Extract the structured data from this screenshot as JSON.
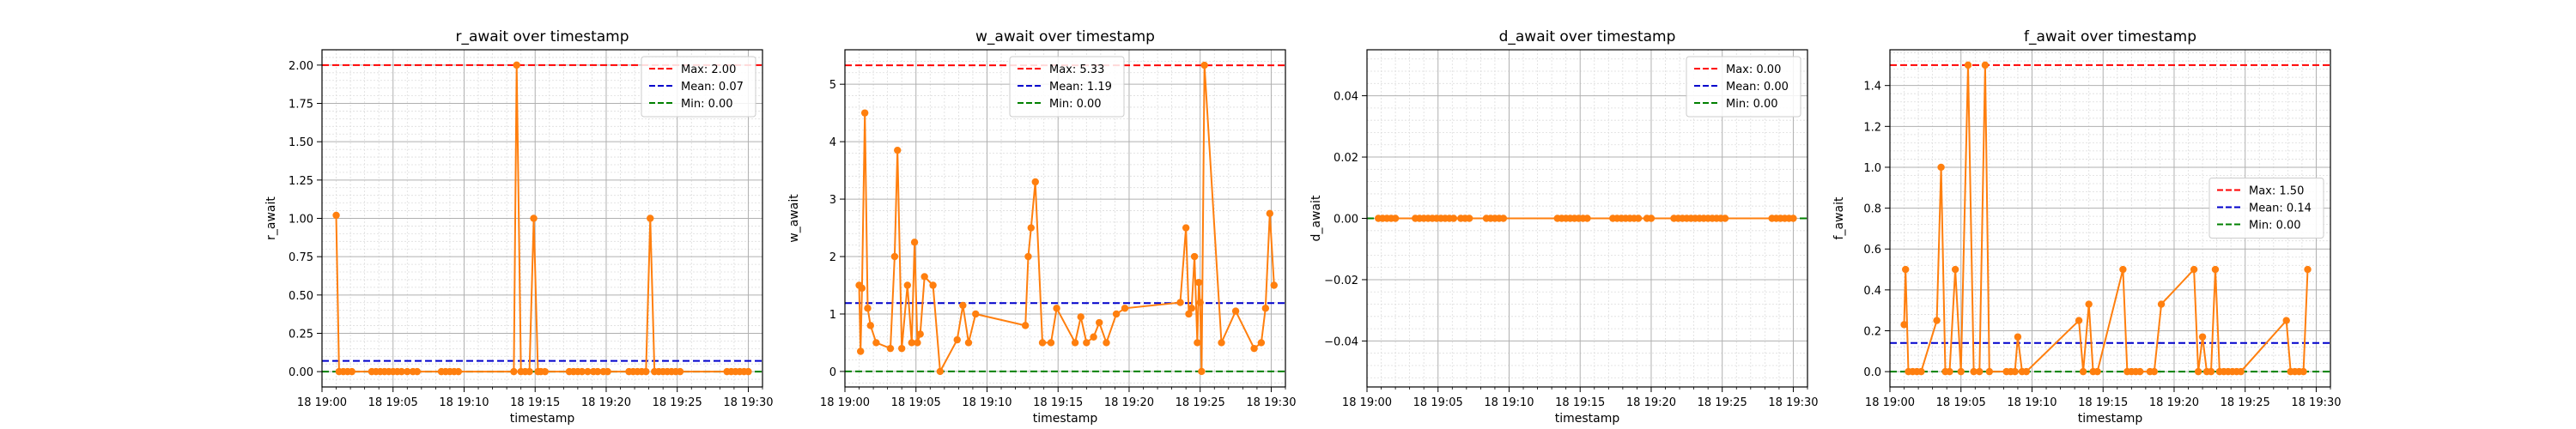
{
  "colors": {
    "series": "#ff7f0e",
    "max": "#ff0000",
    "mean": "#0000cc",
    "min": "#008000",
    "grid_major": "#b0b0b0",
    "grid_minor": "#dddddd"
  },
  "chart_data": [
    {
      "type": "line",
      "title": "r_await over timestamp",
      "xlabel": "timestamp",
      "ylabel": "r_await",
      "xlim": [
        0.0,
        31.0
      ],
      "ylim": [
        -0.1,
        2.1
      ],
      "yticks": [
        0.0,
        0.25,
        0.5,
        0.75,
        1.0,
        1.25,
        1.5,
        1.75,
        2.0
      ],
      "ytick_labels": [
        "0.00",
        "0.25",
        "0.50",
        "0.75",
        "1.00",
        "1.25",
        "1.50",
        "1.75",
        "2.00"
      ],
      "xticks": [
        0,
        5,
        10,
        15,
        20,
        25,
        30
      ],
      "xtick_labels": [
        "18 19:00",
        "18 19:05",
        "18 19:10",
        "18 19:15",
        "18 19:20",
        "18 19:25",
        "18 19:30"
      ],
      "x_unit": "minutes after 18 19:00",
      "x": [
        1.0,
        1.2,
        1.5,
        1.8,
        2.1,
        3.5,
        3.8,
        4.1,
        4.4,
        4.7,
        5.0,
        5.3,
        5.6,
        6.0,
        6.4,
        6.7,
        8.4,
        8.7,
        9.0,
        9.3,
        9.6,
        13.5,
        13.7,
        14.0,
        14.3,
        14.6,
        14.9,
        15.2,
        15.4,
        15.7,
        17.4,
        17.7,
        18.0,
        18.3,
        18.7,
        19.1,
        19.4,
        19.8,
        20.1,
        21.6,
        21.9,
        22.2,
        22.5,
        22.8,
        23.1,
        23.4,
        23.7,
        24.0,
        24.3,
        24.6,
        24.9,
        25.2,
        28.5,
        28.8,
        29.1,
        29.4,
        29.7,
        30.0
      ],
      "series": [
        {
          "values": [
            1.02,
            0.0,
            0.0,
            0.0,
            0.0,
            0.0,
            0.0,
            0.0,
            0.0,
            0.0,
            0.0,
            0.0,
            0.0,
            0.0,
            0.0,
            0.0,
            0.0,
            0.0,
            0.0,
            0.0,
            0.0,
            0.0,
            2.0,
            0.0,
            0.0,
            0.0,
            1.0,
            0.0,
            0.0,
            0.0,
            0.0,
            0.0,
            0.0,
            0.0,
            0.0,
            0.0,
            0.0,
            0.0,
            0.0,
            0.0,
            0.0,
            0.0,
            0.0,
            0.0,
            1.0,
            0.0,
            0.0,
            0.0,
            0.0,
            0.0,
            0.0,
            0.0,
            0.0,
            0.0,
            0.0,
            0.0,
            0.0,
            0.0
          ]
        }
      ],
      "reference_lines": [
        {
          "label": "Max: 2.00",
          "value": 2.0,
          "style": "max"
        },
        {
          "label": "Mean: 0.07",
          "value": 0.07,
          "style": "mean"
        },
        {
          "label": "Min: 0.00",
          "value": 0.0,
          "style": "min"
        }
      ],
      "legend_position": "top-right",
      "grid": true
    },
    {
      "type": "line",
      "title": "w_await over timestamp",
      "xlabel": "timestamp",
      "ylabel": "w_await",
      "xlim": [
        0.0,
        31.0
      ],
      "ylim": [
        -0.27,
        5.6
      ],
      "yticks": [
        0,
        1,
        2,
        3,
        4,
        5
      ],
      "ytick_labels": [
        "0",
        "1",
        "2",
        "3",
        "4",
        "5"
      ],
      "xticks": [
        0,
        5,
        10,
        15,
        20,
        25,
        30
      ],
      "xtick_labels": [
        "18 19:00",
        "18 19:05",
        "18 19:10",
        "18 19:15",
        "18 19:20",
        "18 19:25",
        "18 19:30"
      ],
      "x_unit": "minutes after 18 19:00",
      "x": [
        1.0,
        1.1,
        1.2,
        1.4,
        1.6,
        1.8,
        2.2,
        3.2,
        3.5,
        3.7,
        4.0,
        4.4,
        4.7,
        4.9,
        5.1,
        5.3,
        5.6,
        6.2,
        6.7,
        7.9,
        8.3,
        8.7,
        9.2,
        12.7,
        12.9,
        13.1,
        13.4,
        13.9,
        14.5,
        14.9,
        16.2,
        16.6,
        17.0,
        17.5,
        17.9,
        18.4,
        19.1,
        19.7,
        23.6,
        24.0,
        24.2,
        24.4,
        24.6,
        24.8,
        24.9,
        25.0,
        25.1,
        25.3,
        26.5,
        27.5,
        28.8,
        29.3,
        29.6,
        29.9,
        30.2
      ],
      "series": [
        {
          "values": [
            1.5,
            0.35,
            1.45,
            4.5,
            1.1,
            0.8,
            0.5,
            0.4,
            2.0,
            3.85,
            0.4,
            1.5,
            0.5,
            2.25,
            0.5,
            0.65,
            1.65,
            1.5,
            0.0,
            0.55,
            1.15,
            0.5,
            1.0,
            0.8,
            2.0,
            2.5,
            3.3,
            0.5,
            0.5,
            1.1,
            0.5,
            0.95,
            0.5,
            0.6,
            0.85,
            0.5,
            1.0,
            1.1,
            1.2,
            2.5,
            1.0,
            1.1,
            2.0,
            0.5,
            1.55,
            1.2,
            0.0,
            5.33,
            0.5,
            1.05,
            0.4,
            0.5,
            1.1,
            2.75,
            1.5
          ]
        }
      ],
      "reference_lines": [
        {
          "label": "Max: 5.33",
          "value": 5.33,
          "style": "max"
        },
        {
          "label": "Mean: 1.19",
          "value": 1.19,
          "style": "mean"
        },
        {
          "label": "Min: 0.00",
          "value": 0.0,
          "style": "min"
        }
      ],
      "legend_position": "top-center",
      "grid": true
    },
    {
      "type": "line",
      "title": "d_await over timestamp",
      "xlabel": "timestamp",
      "ylabel": "d_await",
      "xlim": [
        0.0,
        31.0
      ],
      "ylim": [
        -0.055,
        0.055
      ],
      "yticks": [
        -0.04,
        -0.02,
        0.0,
        0.02,
        0.04
      ],
      "ytick_labels": [
        "−0.04",
        "−0.02",
        "0.00",
        "0.02",
        "0.04"
      ],
      "xticks": [
        0,
        5,
        10,
        15,
        20,
        25,
        30
      ],
      "xtick_labels": [
        "18 19:00",
        "18 19:05",
        "18 19:10",
        "18 19:15",
        "18 19:20",
        "18 19:25",
        "18 19:30"
      ],
      "x_unit": "minutes after 18 19:00",
      "x": [
        0.8,
        1.1,
        1.4,
        1.7,
        2.0,
        3.4,
        3.7,
        4.0,
        4.3,
        4.6,
        4.9,
        5.2,
        5.5,
        5.8,
        6.1,
        6.6,
        6.9,
        7.2,
        8.4,
        8.7,
        9.0,
        9.3,
        9.6,
        13.4,
        13.7,
        14.0,
        14.3,
        14.6,
        14.9,
        15.2,
        15.5,
        17.3,
        17.6,
        17.9,
        18.2,
        18.5,
        18.8,
        19.1,
        19.7,
        20.0,
        21.6,
        21.9,
        22.2,
        22.5,
        22.8,
        23.1,
        23.4,
        23.7,
        24.0,
        24.3,
        24.6,
        24.9,
        25.2,
        28.5,
        28.8,
        29.1,
        29.4,
        29.7,
        30.0
      ],
      "series": [
        {
          "values": [
            0.0,
            0.0,
            0.0,
            0.0,
            0.0,
            0.0,
            0.0,
            0.0,
            0.0,
            0.0,
            0.0,
            0.0,
            0.0,
            0.0,
            0.0,
            0.0,
            0.0,
            0.0,
            0.0,
            0.0,
            0.0,
            0.0,
            0.0,
            0.0,
            0.0,
            0.0,
            0.0,
            0.0,
            0.0,
            0.0,
            0.0,
            0.0,
            0.0,
            0.0,
            0.0,
            0.0,
            0.0,
            0.0,
            0.0,
            0.0,
            0.0,
            0.0,
            0.0,
            0.0,
            0.0,
            0.0,
            0.0,
            0.0,
            0.0,
            0.0,
            0.0,
            0.0,
            0.0,
            0.0,
            0.0,
            0.0,
            0.0,
            0.0,
            0.0
          ]
        }
      ],
      "reference_lines": [
        {
          "label": "Max: 0.00",
          "value": 0.0,
          "style": "max"
        },
        {
          "label": "Mean: 0.00",
          "value": 0.0,
          "style": "mean"
        },
        {
          "label": "Min: 0.00",
          "value": 0.0,
          "style": "min"
        }
      ],
      "legend_position": "top-right",
      "grid": true
    },
    {
      "type": "line",
      "title": "f_await over timestamp",
      "xlabel": "timestamp",
      "ylabel": "f_await",
      "xlim": [
        0.0,
        31.0
      ],
      "ylim": [
        -0.075,
        1.575
      ],
      "yticks": [
        0.0,
        0.2,
        0.4,
        0.6,
        0.8,
        1.0,
        1.2,
        1.4
      ],
      "ytick_labels": [
        "0.0",
        "0.2",
        "0.4",
        "0.6",
        "0.8",
        "1.0",
        "1.2",
        "1.4"
      ],
      "xticks": [
        0,
        5,
        10,
        15,
        20,
        25,
        30
      ],
      "xtick_labels": [
        "18 19:00",
        "18 19:05",
        "18 19:10",
        "18 19:15",
        "18 19:20",
        "18 19:25",
        "18 19:30"
      ],
      "x_unit": "minutes after 18 19:00",
      "x": [
        1.0,
        1.1,
        1.3,
        1.6,
        1.9,
        2.2,
        3.3,
        3.6,
        3.9,
        4.2,
        4.6,
        5.0,
        5.5,
        5.9,
        6.3,
        6.7,
        7.0,
        8.2,
        8.5,
        8.8,
        9.0,
        9.3,
        9.6,
        13.3,
        13.6,
        14.0,
        14.3,
        14.6,
        16.4,
        16.7,
        17.0,
        17.3,
        17.6,
        18.3,
        18.6,
        19.1,
        21.4,
        21.7,
        22.0,
        22.3,
        22.6,
        22.9,
        23.2,
        23.5,
        23.8,
        24.1,
        24.4,
        24.7,
        27.9,
        28.2,
        28.5,
        28.8,
        29.1,
        29.4
      ],
      "series": [
        {
          "values": [
            0.23,
            0.5,
            0.0,
            0.0,
            0.0,
            0.0,
            0.25,
            1.0,
            0.0,
            0.0,
            0.5,
            0.0,
            1.5,
            0.0,
            0.0,
            1.5,
            0.0,
            0.0,
            0.0,
            0.0,
            0.17,
            0.0,
            0.0,
            0.25,
            0.0,
            0.33,
            0.0,
            0.0,
            0.5,
            0.0,
            0.0,
            0.0,
            0.0,
            0.0,
            0.0,
            0.33,
            0.5,
            0.0,
            0.17,
            0.0,
            0.0,
            0.5,
            0.0,
            0.0,
            0.0,
            0.0,
            0.0,
            0.0,
            0.25,
            0.0,
            0.0,
            0.0,
            0.0,
            0.5
          ]
        }
      ],
      "reference_lines": [
        {
          "label": "Max: 1.50",
          "value": 1.5,
          "style": "max"
        },
        {
          "label": "Mean: 0.14",
          "value": 0.14,
          "style": "mean"
        },
        {
          "label": "Min: 0.00",
          "value": 0.0,
          "style": "min"
        }
      ],
      "legend_position": "center-right",
      "grid": true
    }
  ]
}
